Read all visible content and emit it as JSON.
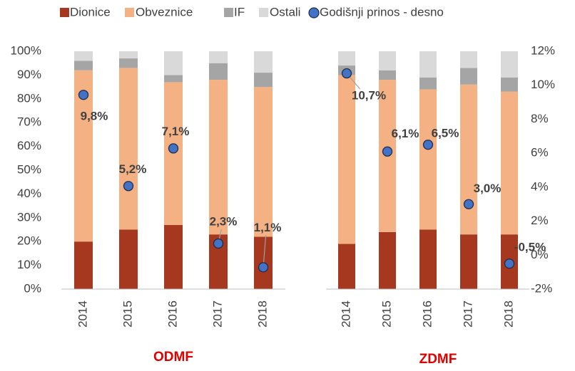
{
  "chart_data": [
    {
      "type": "bar",
      "stacked": true,
      "title": "ODMF",
      "categories": [
        "2014",
        "2015",
        "2016",
        "2017",
        "2018"
      ],
      "ylim": [
        0,
        100
      ],
      "yticks": [
        {
          "value": 0,
          "label": "0%"
        },
        {
          "value": 10,
          "label": "10%"
        },
        {
          "value": 20,
          "label": "20%"
        },
        {
          "value": 30,
          "label": "30%"
        },
        {
          "value": 40,
          "label": "40%"
        },
        {
          "value": 50,
          "label": "50%"
        },
        {
          "value": 60,
          "label": "60%"
        },
        {
          "value": 70,
          "label": "70%"
        },
        {
          "value": 80,
          "label": "80%"
        },
        {
          "value": 90,
          "label": "90%"
        },
        {
          "value": 100,
          "label": "100%"
        }
      ],
      "y2lim": [
        0,
        12
      ],
      "series": [
        {
          "name": "Dionice",
          "color": "#a5381f",
          "values": [
            20,
            25,
            27,
            23,
            22
          ]
        },
        {
          "name": "Obveznice",
          "color": "#f4b183",
          "values": [
            72,
            68,
            60,
            65,
            63
          ]
        },
        {
          "name": "IF",
          "color": "#a5a5a5",
          "values": [
            4,
            4,
            3,
            7,
            6
          ]
        },
        {
          "name": "Ostali",
          "color": "#d9d9d9",
          "values": [
            4,
            3,
            10,
            5,
            9
          ]
        },
        {
          "name": "Godišnji prinos - desno",
          "color": "#4472c4",
          "type": "scatter",
          "axis": "y2",
          "values": [
            9.8,
            5.2,
            7.1,
            2.3,
            1.1
          ],
          "value_labels": [
            "9,8%",
            "5,2%",
            "7,1%",
            "2,3%",
            "1,1%"
          ]
        }
      ]
    },
    {
      "type": "bar",
      "stacked": true,
      "title": "ZDMF",
      "categories": [
        "2014",
        "2015",
        "2016",
        "2017",
        "2018"
      ],
      "ylim": [
        0,
        100
      ],
      "y2lim": [
        -2,
        12
      ],
      "y2ticks": [
        {
          "value": -2,
          "label": "-2%"
        },
        {
          "value": 0,
          "label": "0%"
        },
        {
          "value": 2,
          "label": "2%"
        },
        {
          "value": 4,
          "label": "4%"
        },
        {
          "value": 6,
          "label": "6%"
        },
        {
          "value": 8,
          "label": "8%"
        },
        {
          "value": 10,
          "label": "10%"
        },
        {
          "value": 12,
          "label": "12%"
        }
      ],
      "series": [
        {
          "name": "Dionice",
          "color": "#a5381f",
          "values": [
            19,
            24,
            25,
            23,
            23
          ]
        },
        {
          "name": "Obveznice",
          "color": "#f4b183",
          "values": [
            71,
            64,
            59,
            63,
            60
          ]
        },
        {
          "name": "IF",
          "color": "#a5a5a5",
          "values": [
            4,
            4,
            5,
            7,
            6
          ]
        },
        {
          "name": "Ostali",
          "color": "#d9d9d9",
          "values": [
            6,
            8,
            11,
            7,
            11
          ]
        },
        {
          "name": "Godišnji prinos - desno",
          "color": "#4472c4",
          "type": "scatter",
          "axis": "y2",
          "values": [
            10.7,
            6.1,
            6.5,
            3.0,
            -0.5
          ],
          "value_labels": [
            "10,7%",
            "6,1%",
            "6,5%",
            "3,0%",
            "-0,5%"
          ]
        }
      ]
    }
  ]
}
